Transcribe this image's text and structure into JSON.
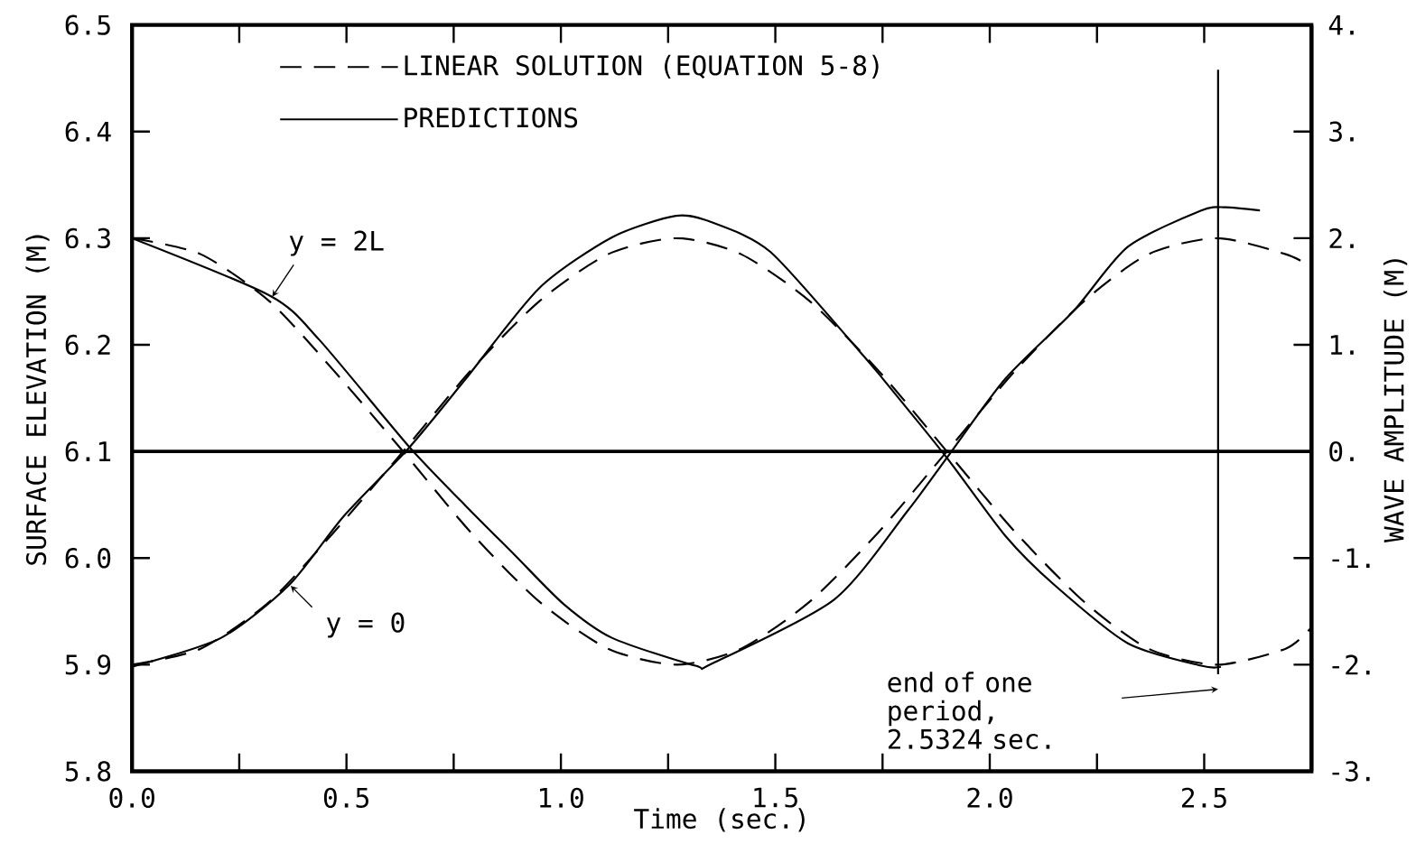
{
  "chart_data": {
    "type": "line",
    "xlabel": "Time (sec.)",
    "ylabel": "SURFACE ELEVATION (M)",
    "y2label": "WAVE AMPLITUDE (M)",
    "xlim": [
      0,
      2.75
    ],
    "ylim": [
      5.8,
      6.5
    ],
    "y2lim": [
      -3,
      4
    ],
    "xticks": [
      {
        "value": 0.0,
        "label": "0.0"
      },
      0.5,
      {
        "value": 1.0,
        "label": "1.0"
      },
      1.5,
      {
        "value": 2.0,
        "label": "2.0"
      },
      2.5
    ],
    "yticks": [
      5.8,
      5.9,
      {
        "value": 6.0,
        "label": "6.0"
      },
      6.1,
      6.2,
      6.3,
      6.4,
      6.5
    ],
    "y2ticks": [
      {
        "value": -3,
        "label": "-3."
      },
      {
        "value": -2,
        "label": "-2."
      },
      {
        "value": -1,
        "label": "-1."
      },
      {
        "value": 0,
        "label": "0."
      },
      {
        "value": 1,
        "label": "1."
      },
      {
        "value": 2,
        "label": "2."
      },
      {
        "value": 3,
        "label": "3."
      },
      {
        "value": 4,
        "label": "4."
      }
    ],
    "legend": "top left",
    "series": [
      {
        "name": "LINEAR SOLUTION (EQUATION 5-8)",
        "color": "#000000",
        "line_style": "dashed",
        "x": [
          0,
          0.16,
          0.32,
          0.47,
          0.63,
          0.79,
          0.95,
          1.11,
          1.27,
          1.42,
          1.58,
          1.74,
          1.9,
          2.06,
          2.22,
          2.37,
          2.53,
          2.69,
          2.75
        ],
        "values": [
          6.3,
          6.285,
          6.241,
          6.176,
          6.101,
          6.024,
          5.959,
          5.915,
          5.9,
          5.915,
          5.959,
          6.024,
          6.1,
          6.176,
          6.241,
          6.285,
          6.3,
          6.285,
          6.273
        ]
      },
      {
        "color": "#000000",
        "line_style": "dashed",
        "x": [
          0,
          0.16,
          0.32,
          0.47,
          0.63,
          0.79,
          0.95,
          1.11,
          1.27,
          1.42,
          1.58,
          1.74,
          1.9,
          2.06,
          2.22,
          2.37,
          2.53,
          2.69,
          2.75
        ],
        "values": [
          5.9,
          5.915,
          5.959,
          6.024,
          6.099,
          6.176,
          6.241,
          6.285,
          6.3,
          6.285,
          6.241,
          6.176,
          6.1,
          6.024,
          5.959,
          5.915,
          5.9,
          5.915,
          5.935
        ]
      },
      {
        "name": "PREDICTIONS",
        "color": "#000000",
        "line_style": "solid",
        "x": [
          0,
          0.322,
          0.436,
          0.647,
          0.778,
          0.892,
          1.006,
          1.12,
          1.314,
          1.352,
          1.637,
          1.808,
          1.9,
          2.036,
          2.196,
          2.322,
          2.493,
          2.55,
          2.63
        ],
        "values": [
          6.3,
          6.246,
          6.205,
          6.104,
          6.049,
          6.003,
          5.957,
          5.925,
          5.899,
          5.901,
          5.961,
          6.044,
          6.094,
          6.168,
          6.232,
          6.292,
          6.326,
          6.329,
          6.326
        ]
      },
      {
        "color": "#000000",
        "line_style": "solid",
        "x": [
          0,
          0.207,
          0.367,
          0.493,
          0.647,
          0.778,
          0.949,
          1.12,
          1.268,
          1.352,
          1.489,
          1.694,
          1.751,
          1.9,
          2.036,
          2.15,
          2.322,
          2.493,
          2.539
        ],
        "values": [
          5.898,
          5.925,
          5.975,
          6.039,
          6.104,
          6.168,
          6.253,
          6.301,
          6.321,
          6.315,
          6.287,
          6.195,
          6.168,
          6.094,
          6.021,
          5.975,
          5.92,
          5.899,
          5.898
        ]
      }
    ],
    "ref_lines": [
      {
        "axis": "y",
        "value": 6.1
      },
      {
        "axis": "x",
        "value": 2.5324
      }
    ],
    "annotations": [
      {
        "text": "y = 2L",
        "x": 0.327,
        "y": 6.245
      },
      {
        "text": "y = 0",
        "x": 0.37,
        "y": 5.974
      },
      "end of one period, 2.5324 sec."
    ]
  }
}
